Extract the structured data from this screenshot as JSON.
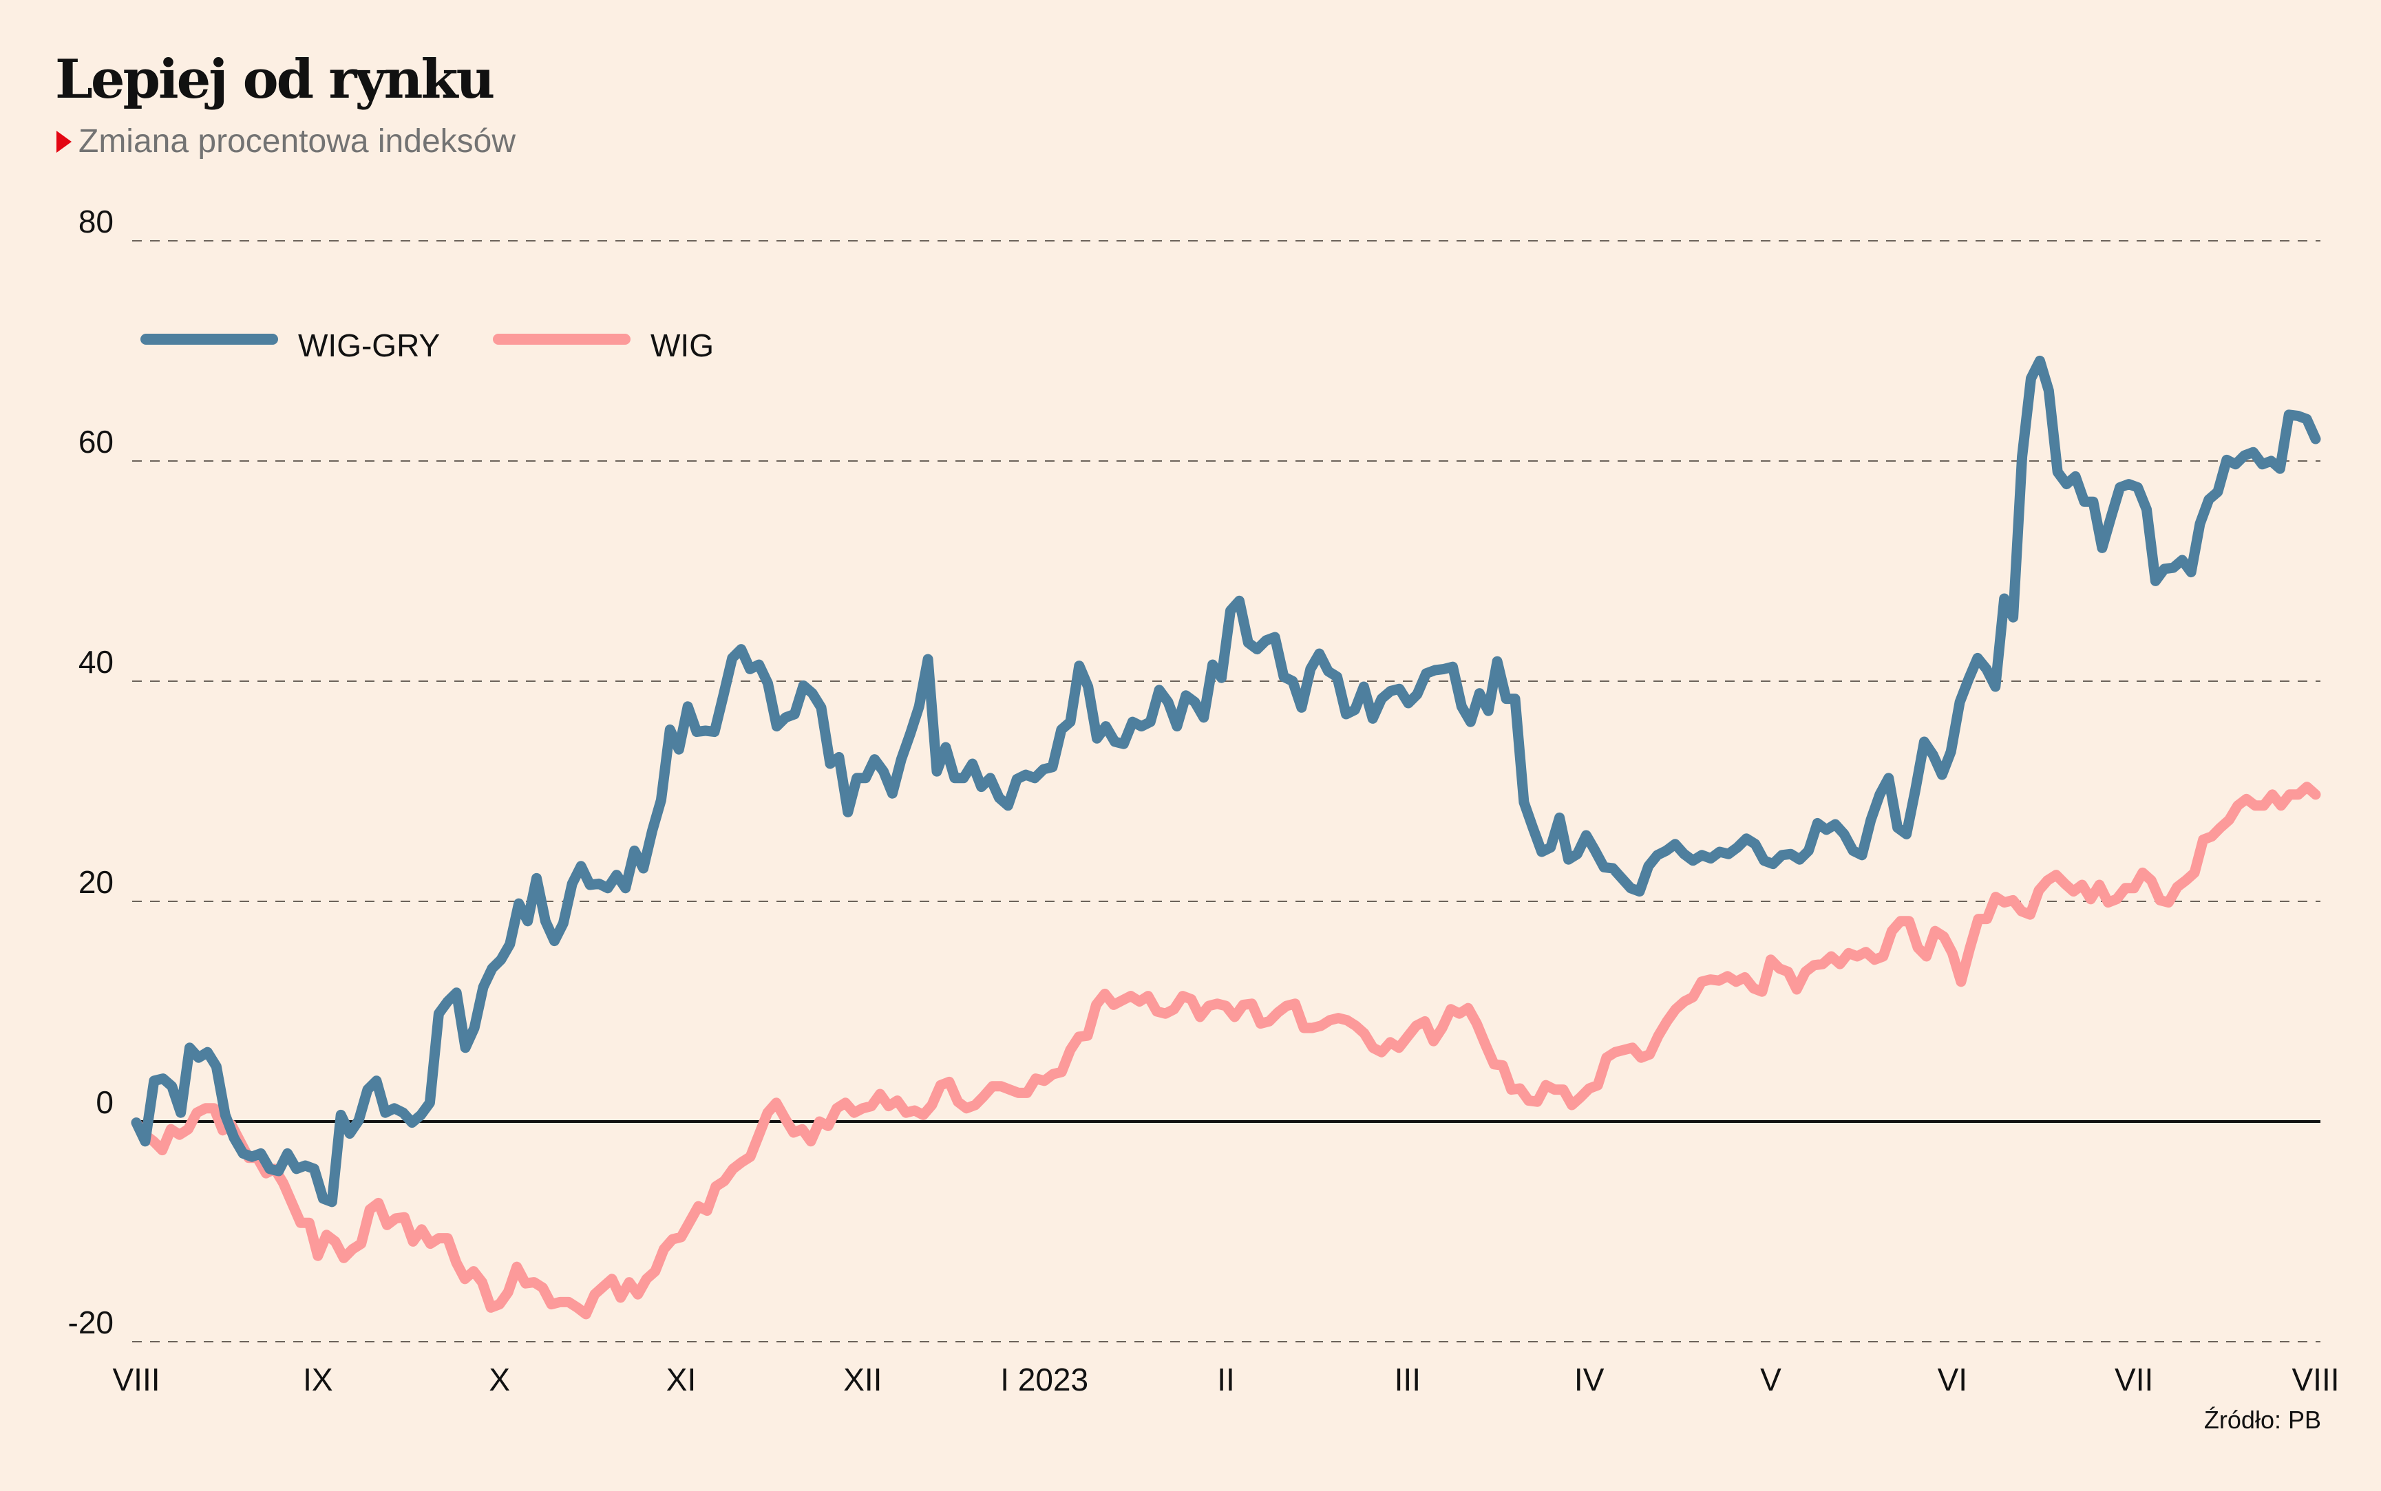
{
  "header": {
    "title": "Lepiej od rynku",
    "subtitle": "Zmiana procentowa indeksów"
  },
  "source": "Źródło: PB",
  "chart_data": {
    "type": "line",
    "title": "Lepiej od rynku",
    "subtitle": "Zmiana procentowa indeksów",
    "xlabel": "",
    "ylabel": "",
    "ylim": [
      -20,
      80
    ],
    "yticks": [
      -20,
      0,
      20,
      40,
      60,
      80
    ],
    "ytick_labels": [
      "-20",
      "0",
      "20",
      "40",
      "60",
      "80"
    ],
    "xlim": [
      0,
      12
    ],
    "xticks": [
      0,
      1,
      2,
      3,
      4,
      5,
      6,
      7,
      8,
      9,
      10,
      11,
      12
    ],
    "xtick_labels": [
      "VIII",
      "IX",
      "X",
      "XI",
      "XII",
      "I 2023",
      "II",
      "III",
      "IV",
      "V",
      "VI",
      "VII",
      "VIII"
    ],
    "grid": "horizontal dashed",
    "zero_line": true,
    "legend_position": "top-left",
    "series": [
      {
        "name": "WIG-GRY",
        "color": "#4e7f9e",
        "values": [
          -0.1,
          -1.8,
          3.7,
          3.9,
          3.2,
          0.8,
          6.7,
          5.8,
          6.3,
          5.0,
          0.6,
          -1.5,
          -2.9,
          -3.2,
          -2.9,
          -4.3,
          -4.5,
          -2.9,
          -4.3,
          -4.0,
          -4.3,
          -7.0,
          -7.3,
          0.6,
          -1.1,
          0.1,
          2.9,
          3.7,
          0.8,
          1.2,
          0.8,
          -0.1,
          0.6,
          1.7,
          9.8,
          10.9,
          11.7,
          6.7,
          8.5,
          12.2,
          13.9,
          14.7,
          16.1,
          19.8,
          18.2,
          22.1,
          18.2,
          16.4,
          18.0,
          21.6,
          23.2,
          21.5,
          21.6,
          21.2,
          22.4,
          21.2,
          24.6,
          23.0,
          26.4,
          29.2,
          35.6,
          33.8,
          37.7,
          35.4,
          35.5,
          35.4,
          38.7,
          42.1,
          42.9,
          41.1,
          41.5,
          39.8,
          35.9,
          36.7,
          37.0,
          39.6,
          38.9,
          37.6,
          32.5,
          33.1,
          28.1,
          31.2,
          31.2,
          32.9,
          31.8,
          29.8,
          32.9,
          35.2,
          37.7,
          42.0,
          31.8,
          34.0,
          31.2,
          31.2,
          32.5,
          30.4,
          31.2,
          29.4,
          28.7,
          31.1,
          31.5,
          31.2,
          32.0,
          32.2,
          35.6,
          36.3,
          41.4,
          39.5,
          34.8,
          35.9,
          34.5,
          34.3,
          36.3,
          35.9,
          36.3,
          39.2,
          38.1,
          35.9,
          38.7,
          38.1,
          36.7,
          41.5,
          40.3,
          46.4,
          47.3,
          43.5,
          42.9,
          43.7,
          44.0,
          40.4,
          40.0,
          37.6,
          41.1,
          42.5,
          40.9,
          40.4,
          37.0,
          37.4,
          39.5,
          36.6,
          38.4,
          39.1,
          39.3,
          38.0,
          38.8,
          40.7,
          41.0,
          41.1,
          41.3,
          37.7,
          36.3,
          38.9,
          37.3,
          41.8,
          38.4,
          38.4,
          29.0,
          26.7,
          24.5,
          24.9,
          27.6,
          23.8,
          24.3,
          26.0,
          24.6,
          23.1,
          23.0,
          22.1,
          21.2,
          20.9,
          23.2,
          24.2,
          24.6,
          25.2,
          24.3,
          23.7,
          24.2,
          23.9,
          24.5,
          24.3,
          24.9,
          25.7,
          25.2,
          23.7,
          23.4,
          24.2,
          24.3,
          23.8,
          24.6,
          27.1,
          26.5,
          27.0,
          26.1,
          24.6,
          24.2,
          27.4,
          29.7,
          31.2,
          26.7,
          26.1,
          30.1,
          34.5,
          33.3,
          31.5,
          33.6,
          38.1,
          40.2,
          42.1,
          41.1,
          39.5,
          47.5,
          45.8,
          60.4,
          67.5,
          69.1,
          66.4,
          59.0,
          57.9,
          58.6,
          56.3,
          56.3,
          52.1,
          54.9,
          57.6,
          57.9,
          57.6,
          55.6,
          49.1,
          50.2,
          50.3,
          51.0,
          49.9,
          54.3,
          56.5,
          57.2,
          60.1,
          59.7,
          60.5,
          60.8,
          59.7,
          60.0,
          59.3,
          64.2,
          64.1,
          63.8,
          62.0
        ]
      },
      {
        "name": "WIG",
        "color": "#fc9a9a",
        "values": [
          -0.1,
          -1.2,
          -1.8,
          -2.6,
          -0.7,
          -1.2,
          -0.7,
          0.8,
          1.2,
          1.2,
          -0.8,
          -0.3,
          -1.8,
          -3.3,
          -3.3,
          -4.7,
          -4.3,
          -5.6,
          -7.4,
          -9.2,
          -9.2,
          -12.2,
          -10.3,
          -10.9,
          -12.4,
          -11.6,
          -11.1,
          -8.0,
          -7.4,
          -9.4,
          -8.8,
          -8.7,
          -10.9,
          -9.8,
          -11.1,
          -10.6,
          -10.6,
          -12.8,
          -14.3,
          -13.6,
          -14.6,
          -16.9,
          -16.6,
          -15.5,
          -13.2,
          -14.7,
          -14.6,
          -15.1,
          -16.6,
          -16.4,
          -16.4,
          -16.9,
          -17.5,
          -15.7,
          -15.0,
          -14.3,
          -16.0,
          -14.6,
          -15.7,
          -14.3,
          -13.6,
          -11.6,
          -10.7,
          -10.5,
          -9.1,
          -7.7,
          -8.1,
          -5.9,
          -5.4,
          -4.3,
          -3.7,
          -3.2,
          -1.2,
          0.8,
          1.7,
          0.3,
          -1.0,
          -0.7,
          -1.8,
          0.0,
          -0.4,
          1.2,
          1.7,
          0.8,
          1.2,
          1.4,
          2.5,
          1.4,
          1.9,
          0.8,
          1.0,
          0.6,
          1.5,
          3.3,
          3.6,
          1.8,
          1.2,
          1.5,
          2.3,
          3.2,
          3.2,
          2.9,
          2.6,
          2.6,
          3.9,
          3.7,
          4.3,
          4.5,
          6.5,
          7.7,
          7.8,
          10.6,
          11.6,
          10.6,
          11.0,
          11.4,
          10.9,
          11.4,
          10.0,
          9.8,
          10.2,
          11.4,
          11.1,
          9.5,
          10.5,
          10.7,
          10.5,
          9.5,
          10.6,
          10.7,
          8.9,
          9.1,
          9.9,
          10.5,
          10.7,
          8.5,
          8.5,
          8.7,
          9.2,
          9.4,
          9.2,
          8.7,
          8.0,
          6.7,
          6.3,
          7.2,
          6.7,
          7.7,
          8.7,
          9.1,
          7.3,
          8.5,
          10.2,
          9.8,
          10.3,
          8.9,
          7.0,
          5.2,
          5.1,
          2.9,
          3.0,
          1.9,
          1.8,
          3.3,
          2.9,
          2.9,
          1.5,
          2.2,
          3.0,
          3.3,
          5.8,
          6.3,
          6.5,
          6.7,
          5.8,
          6.1,
          7.8,
          9.1,
          10.2,
          10.9,
          11.3,
          12.7,
          12.9,
          12.8,
          13.2,
          12.7,
          13.1,
          12.1,
          11.8,
          14.7,
          13.9,
          13.6,
          12.0,
          13.6,
          14.2,
          14.3,
          15.0,
          14.3,
          15.3,
          15.0,
          15.4,
          14.7,
          15.0,
          17.3,
          18.2,
          18.2,
          15.8,
          15.0,
          17.3,
          16.8,
          15.3,
          12.7,
          15.7,
          18.4,
          18.4,
          20.4,
          19.9,
          20.1,
          19.1,
          18.8,
          21.0,
          21.9,
          22.4,
          21.6,
          20.9,
          21.5,
          20.2,
          21.5,
          19.9,
          20.2,
          21.2,
          21.2,
          22.6,
          21.9,
          20.1,
          19.9,
          21.3,
          21.9,
          22.6,
          25.6,
          25.9,
          26.7,
          27.4,
          28.7,
          29.3,
          28.7,
          28.7,
          29.7,
          28.7,
          29.7,
          29.7,
          30.4,
          29.7
        ]
      }
    ]
  }
}
